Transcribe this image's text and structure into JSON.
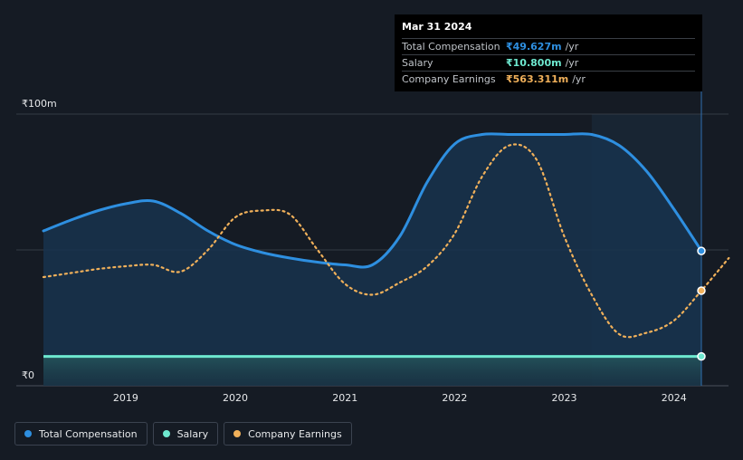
{
  "tooltip": {
    "date": "Mar 31 2024",
    "rows": [
      {
        "label": "Total Compensation",
        "value": "₹49.627m",
        "unit": "/yr",
        "color": "#2e8fe0"
      },
      {
        "label": "Salary",
        "value": "₹10.800m",
        "unit": "/yr",
        "color": "#6ee8cf"
      },
      {
        "label": "Company Earnings",
        "value": "₹563.311m",
        "unit": "/yr",
        "color": "#f0b05a"
      }
    ]
  },
  "legend": [
    {
      "label": "Total Compensation",
      "color": "#2e8fe0"
    },
    {
      "label": "Salary",
      "color": "#6ee8cf"
    },
    {
      "label": "Company Earnings",
      "color": "#f0b05a"
    }
  ],
  "chart_data": {
    "type": "line",
    "title": "",
    "xlabel": "",
    "ylabel": "",
    "xlim": [
      2018.25,
      2024.5
    ],
    "ylim": [
      0,
      100
    ],
    "y_tick_labels": [
      {
        "value": 100,
        "label": "₹100m"
      },
      {
        "value": 0,
        "label": "₹0"
      }
    ],
    "x_ticks": [
      2019,
      2020,
      2021,
      2022,
      2023,
      2024
    ],
    "forecast_region_start": 2023.25,
    "series": [
      {
        "name": "Total Compensation",
        "unit": "₹m",
        "style": "solid-area",
        "color": "#2e8fe0",
        "points": [
          [
            2018.25,
            57
          ],
          [
            2018.5,
            61
          ],
          [
            2018.75,
            64.5
          ],
          [
            2019.0,
            67
          ],
          [
            2019.25,
            68
          ],
          [
            2019.5,
            63.5
          ],
          [
            2019.75,
            57
          ],
          [
            2020.0,
            52
          ],
          [
            2020.25,
            49
          ],
          [
            2020.5,
            47
          ],
          [
            2020.75,
            45.5
          ],
          [
            2021.0,
            44.5
          ],
          [
            2021.25,
            44.5
          ],
          [
            2021.5,
            55
          ],
          [
            2021.75,
            75
          ],
          [
            2022.0,
            89
          ],
          [
            2022.25,
            92.5
          ],
          [
            2022.5,
            92.5
          ],
          [
            2022.75,
            92.5
          ],
          [
            2023.0,
            92.5
          ],
          [
            2023.25,
            92.5
          ],
          [
            2023.5,
            88.5
          ],
          [
            2023.75,
            79
          ],
          [
            2024.0,
            65
          ],
          [
            2024.25,
            49.627
          ]
        ]
      },
      {
        "name": "Salary",
        "unit": "₹m",
        "style": "solid-area",
        "color": "#6ee8cf",
        "points": [
          [
            2018.25,
            10.8
          ],
          [
            2024.25,
            10.8
          ]
        ]
      },
      {
        "name": "Company Earnings",
        "unit": "scaled",
        "style": "dotted",
        "color": "#f0b05a",
        "points": [
          [
            2018.25,
            40
          ],
          [
            2018.5,
            41.5
          ],
          [
            2018.75,
            43
          ],
          [
            2019.0,
            44
          ],
          [
            2019.25,
            44.5
          ],
          [
            2019.5,
            42
          ],
          [
            2019.75,
            50
          ],
          [
            2020.0,
            62
          ],
          [
            2020.25,
            64.5
          ],
          [
            2020.5,
            63
          ],
          [
            2020.75,
            50
          ],
          [
            2021.0,
            37.5
          ],
          [
            2021.25,
            33.5
          ],
          [
            2021.5,
            38
          ],
          [
            2021.75,
            44
          ],
          [
            2022.0,
            56
          ],
          [
            2022.25,
            77
          ],
          [
            2022.5,
            88.5
          ],
          [
            2022.75,
            83
          ],
          [
            2023.0,
            55
          ],
          [
            2023.25,
            33.5
          ],
          [
            2023.5,
            19
          ],
          [
            2023.75,
            19.5
          ],
          [
            2024.0,
            24
          ],
          [
            2024.25,
            35
          ],
          [
            2024.5,
            47
          ]
        ]
      }
    ],
    "end_markers": [
      {
        "series": "Total Compensation",
        "x": 2024.25,
        "y": 49.627
      },
      {
        "series": "Salary",
        "x": 2024.25,
        "y": 10.8
      },
      {
        "series": "Company Earnings",
        "x": 2024.25,
        "y": 35
      }
    ]
  }
}
